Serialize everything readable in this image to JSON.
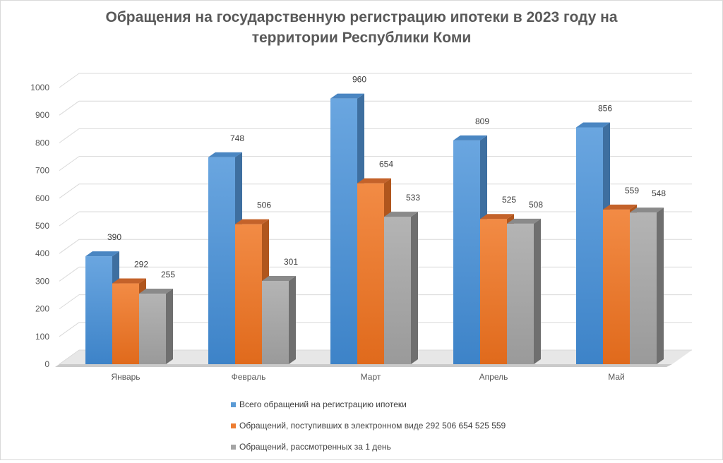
{
  "title_line1": "Обращения на государственную регистрацию ипотеки в 2023 году на",
  "title_line2": "территории Республики Коми",
  "colors": {
    "series1": "#5b9bd5",
    "series2": "#ed7d31",
    "series3": "#a5a5a5",
    "grid": "#d9d9d9",
    "text": "#595959"
  },
  "chart_data": {
    "type": "bar",
    "title": "Обращения на государственную регистрацию ипотеки в 2023 году на территории Республики Коми",
    "categories": [
      "Январь",
      "Февраль",
      "Март",
      "Апрель",
      "Май"
    ],
    "series": [
      {
        "name": "Всего обращений на регистрацию ипотеки",
        "values": [
          390,
          748,
          960,
          809,
          856
        ]
      },
      {
        "name": "Обращений, поступивших в электронном виде 292 506 654 525 559",
        "values": [
          292,
          506,
          654,
          525,
          559
        ]
      },
      {
        "name": "Обращений, рассмотренных за 1 день",
        "values": [
          255,
          301,
          533,
          508,
          548
        ]
      }
    ],
    "ylim": [
      0,
      1000
    ],
    "yticks": [
      "0",
      "100",
      "200",
      "300",
      "400",
      "500",
      "600",
      "700",
      "800",
      "900",
      "1000"
    ],
    "grid": true,
    "legend_position": "bottom",
    "style": "3d-column"
  }
}
